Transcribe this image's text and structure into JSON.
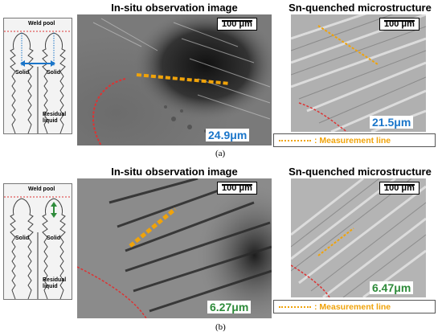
{
  "titles": {
    "in_situ": "In-situ observation image",
    "quenched": "Sn-quenched microstructure"
  },
  "schematic": {
    "weld_pool": "Weld pool",
    "solid": "Solid",
    "residual": "Residual liquid"
  },
  "scale_bar": "100 μm",
  "row_a": {
    "in_situ_value": "24.9μm",
    "quenched_value": "21.5μm",
    "caption": "(a)",
    "value_color": "#1a75c9"
  },
  "row_b": {
    "in_situ_value": "6.27μm",
    "quenched_value": "6.47μm",
    "caption": "(b)",
    "value_color": "#2e8b3a"
  },
  "legend": {
    "label": ": Measurement line",
    "color": "#f0a30a"
  }
}
